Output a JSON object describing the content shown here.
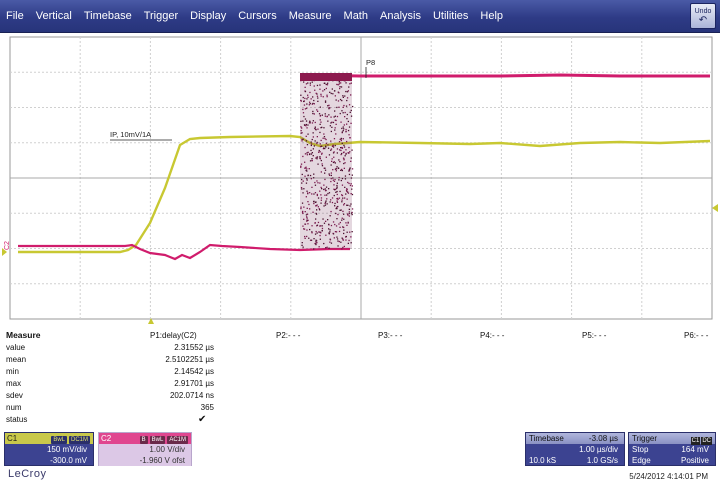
{
  "menu": {
    "items": [
      "File",
      "Vertical",
      "Timebase",
      "Trigger",
      "Display",
      "Cursors",
      "Measure",
      "Math",
      "Analysis",
      "Utilities",
      "Help"
    ],
    "undo_label": "Undo"
  },
  "waveform": {
    "c1_marker": "C1",
    "c2_marker": "C2",
    "annotation_ip": "IP, 10mV/1A",
    "annotation_p8": "P8",
    "colors": {
      "ch1": "#c8c832",
      "ch2": "#d01c6c",
      "grid": "#c0c0c0"
    }
  },
  "measure": {
    "title": "Measure",
    "p1_header": "P1:delay(C2)",
    "p_headers": [
      "P2:- - -",
      "P3:- - -",
      "P4:- - -",
      "P5:- - -",
      "P6:- - -"
    ],
    "rows": [
      {
        "label": "value",
        "val": "2.31552 µs"
      },
      {
        "label": "mean",
        "val": "2.5102251 µs"
      },
      {
        "label": "min",
        "val": "2.14542 µs"
      },
      {
        "label": "max",
        "val": "2.91701 µs"
      },
      {
        "label": "sdev",
        "val": "202.0714 ns"
      },
      {
        "label": "num",
        "val": "365"
      },
      {
        "label": "status",
        "val": ""
      }
    ],
    "status_icon": "checkmark-icon"
  },
  "channels": {
    "c1": {
      "name": "C1",
      "tags": [
        "BwL",
        "DC1M"
      ],
      "scale": "150 mV/div",
      "offset": "-300.0 mV"
    },
    "c2": {
      "name": "C2",
      "tags": [
        "B",
        "BwL",
        "AC1M"
      ],
      "scale": "1.00 V/div",
      "offset": "-1.960 V ofst"
    }
  },
  "timebase": {
    "label": "Timebase",
    "delay": "-3.08 µs",
    "per_div": "1.00 µs/div",
    "samples": "10.0 kS",
    "rate": "1.0 GS/s"
  },
  "trigger": {
    "label": "Trigger",
    "tags": [
      "C1",
      "DC"
    ],
    "mode": "Stop",
    "level": "164 mV",
    "type": "Edge",
    "slope": "Positive"
  },
  "brand": "LeCroy",
  "datetime": "5/24/2012 4:14:01 PM"
}
